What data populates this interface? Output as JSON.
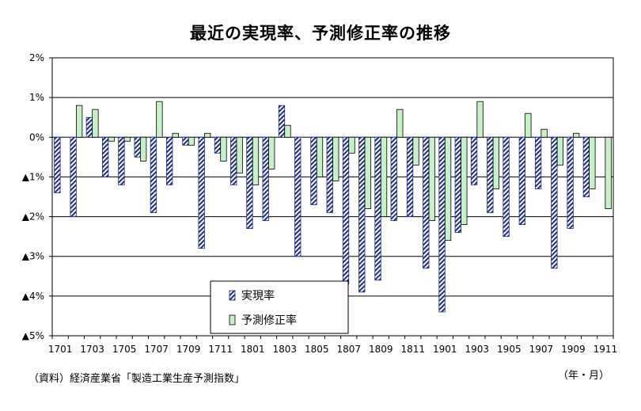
{
  "chart_data": {
    "type": "bar",
    "title": "最近の実現率、予測修正率の推移",
    "categories": [
      "1701",
      "1702",
      "1703",
      "1704",
      "1705",
      "1706",
      "1707",
      "1708",
      "1709",
      "1710",
      "1711",
      "1712",
      "1801",
      "1802",
      "1803",
      "1804",
      "1805",
      "1806",
      "1807",
      "1808",
      "1809",
      "1810",
      "1811",
      "1812",
      "1901",
      "1902",
      "1903",
      "1904",
      "1905",
      "1906",
      "1907",
      "1908",
      "1909",
      "1910",
      "1911"
    ],
    "x_tick_labels": [
      "1701",
      "1703",
      "1705",
      "1707",
      "1709",
      "1711",
      "1801",
      "1803",
      "1805",
      "1807",
      "1809",
      "1811",
      "1901",
      "1903",
      "1905",
      "1907",
      "1909",
      "1911"
    ],
    "y_tick_labels": [
      "2%",
      "1%",
      "0%",
      "▲1%",
      "▲2%",
      "▲3%",
      "▲4%",
      "▲5%"
    ],
    "ylim": [
      -5,
      2
    ],
    "y_ticks": [
      2,
      1,
      0,
      -1,
      -2,
      -3,
      -4,
      -5
    ],
    "grid": true,
    "legend_position": "bottom-center",
    "series": [
      {
        "name": "実現率",
        "color": "#1f2d8a",
        "pattern": "diagonal-hatch",
        "values": [
          -1.4,
          -2.0,
          0.5,
          -1.0,
          -1.2,
          -0.5,
          -1.9,
          -1.2,
          -0.2,
          -2.8,
          -0.4,
          -1.2,
          -2.3,
          -2.1,
          0.8,
          -3.0,
          -1.7,
          -1.9,
          -3.7,
          -3.9,
          -3.6,
          -2.1,
          -2.0,
          -3.3,
          -4.4,
          -2.4,
          -1.2,
          -1.9,
          -2.5,
          -2.2,
          -1.3,
          -3.3,
          -2.3,
          -1.5,
          null
        ]
      },
      {
        "name": "予測修正率",
        "color": "#c8f0c8",
        "values": [
          null,
          0.8,
          0.7,
          -0.1,
          -0.1,
          -0.6,
          0.9,
          0.1,
          -0.2,
          0.1,
          -0.6,
          -0.9,
          -1.2,
          -0.8,
          0.3,
          null,
          -1.0,
          -1.1,
          -0.4,
          -1.8,
          -2.0,
          0.7,
          -0.7,
          -2.1,
          -2.6,
          -2.2,
          0.9,
          -1.3,
          null,
          0.6,
          0.2,
          -0.7,
          0.1,
          -1.3,
          -1.8
        ]
      }
    ]
  },
  "footer": {
    "source": "（資料）経済産業省「製造工業生産予測指数」",
    "unit": "（年・月）"
  }
}
